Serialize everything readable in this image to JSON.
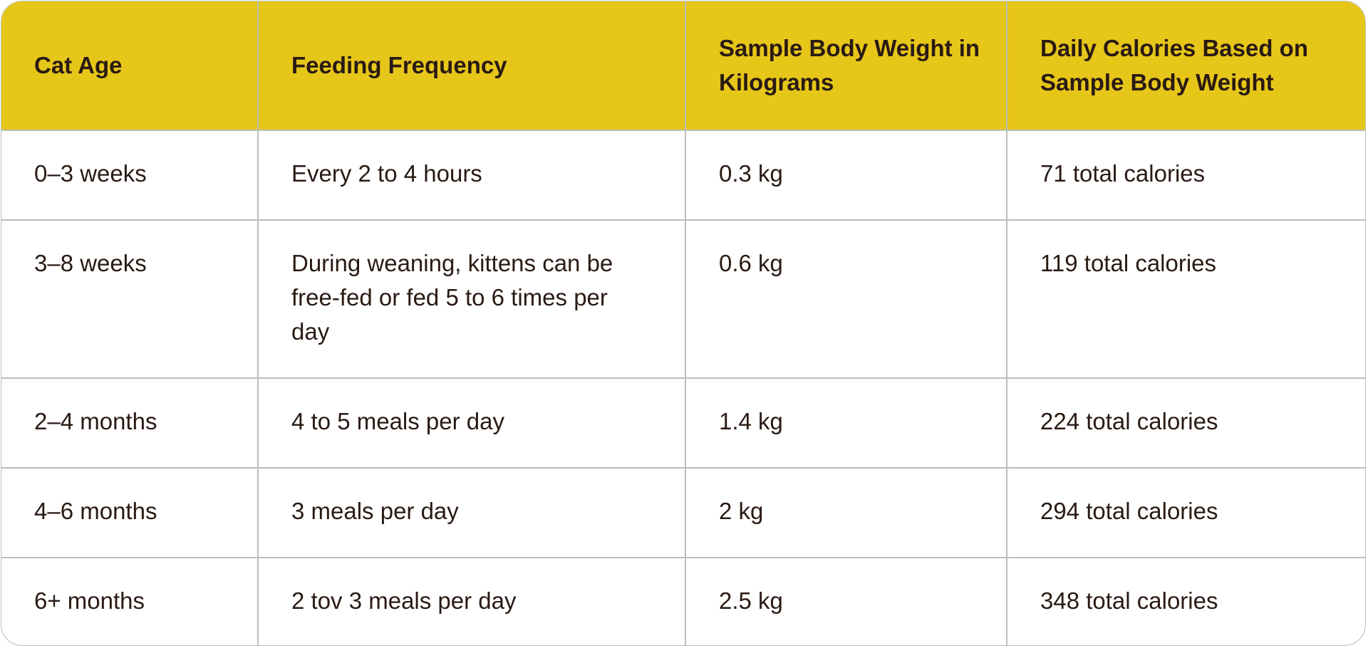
{
  "table": {
    "columns": [
      "Cat Age",
      "Feeding Frequency",
      "Sample Body Weight in Kilograms",
      "Daily Calories Based on Sample Body Weight"
    ],
    "rows": [
      [
        "0–3 weeks",
        "Every 2 to 4 hours",
        "0.3 kg",
        "71 total calories"
      ],
      [
        "3–8 weeks",
        "During weaning, kittens can be free-fed or fed 5 to 6 times per day",
        "0.6 kg",
        "119 total calories"
      ],
      [
        "2–4 months",
        "4 to 5 meals per day",
        "1.4 kg",
        "224 total calories"
      ],
      [
        "4–6 months",
        "3 meals per day",
        "2 kg",
        "294 total calories"
      ],
      [
        "6+ months",
        "2 tov 3 meals per day",
        "2.5 kg",
        "348 total calories"
      ]
    ]
  }
}
